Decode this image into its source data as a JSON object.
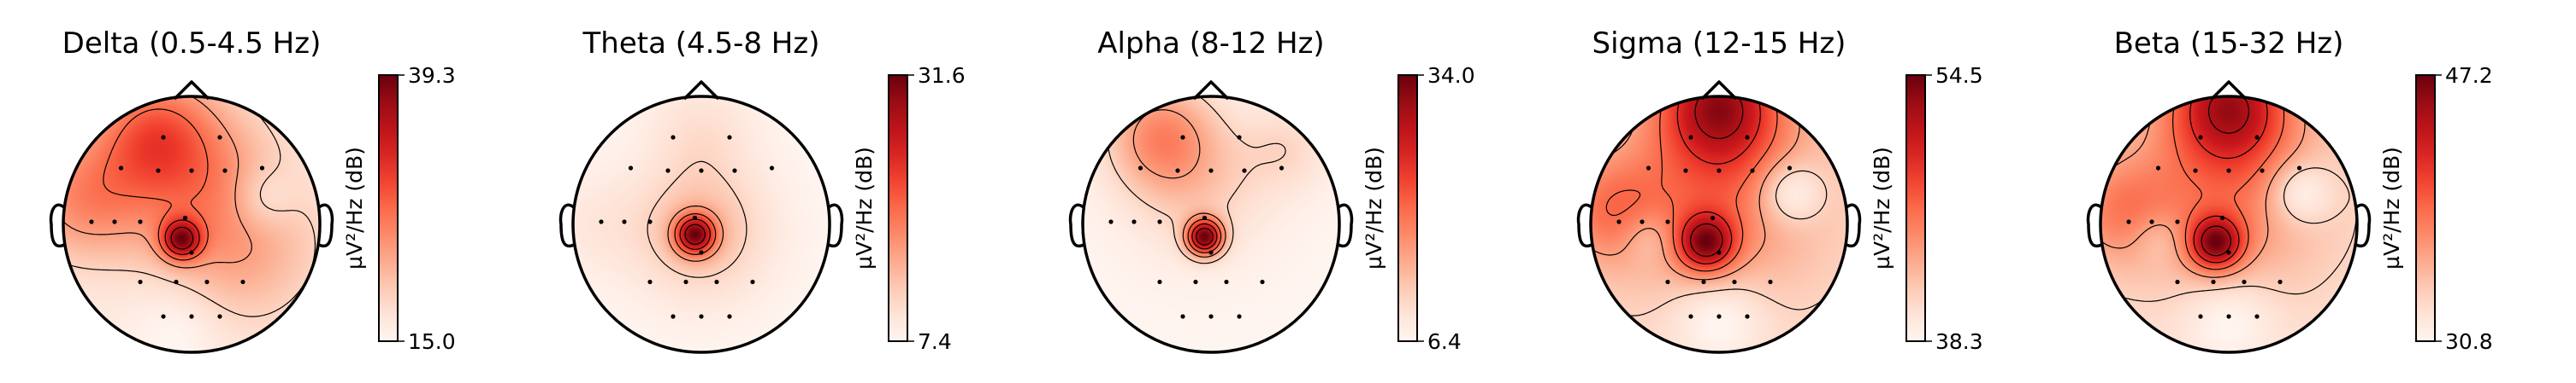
{
  "chart_data": [
    {
      "type": "heatmap",
      "title": "Delta (0.5-4.5 Hz)",
      "colorbar": {
        "label": "µV²/Hz (dB)",
        "min": 15.0,
        "max": 39.3,
        "ticks": [
          "39.3",
          "15.0"
        ]
      },
      "blobs": [
        {
          "cx": -0.08,
          "cy": -0.12,
          "level": 1.0,
          "sigma": 0.11
        },
        {
          "cx": -0.3,
          "cy": 0.72,
          "level": 0.55,
          "sigma": 0.32
        },
        {
          "cx": 0.0,
          "cy": 0.4,
          "level": 0.45,
          "sigma": 0.45
        },
        {
          "cx": -0.85,
          "cy": 0.2,
          "level": 0.5,
          "sigma": 0.35
        },
        {
          "cx": 0.4,
          "cy": -0.2,
          "level": 0.35,
          "sigma": 0.45
        },
        {
          "cx": 0.55,
          "cy": 0.2,
          "level": -0.25,
          "sigma": 0.18
        },
        {
          "cx": -0.1,
          "cy": -0.8,
          "level": -0.15,
          "sigma": 0.25
        }
      ]
    },
    {
      "type": "heatmap",
      "title": "Theta (4.5-8 Hz)",
      "colorbar": {
        "label": "µV²/Hz (dB)",
        "min": 7.4,
        "max": 31.6,
        "ticks": [
          "31.6",
          "7.4"
        ]
      },
      "blobs": [
        {
          "cx": -0.05,
          "cy": -0.08,
          "level": 1.0,
          "sigma": 0.11
        },
        {
          "cx": 0.0,
          "cy": -0.05,
          "level": 0.35,
          "sigma": 0.38
        },
        {
          "cx": 0.0,
          "cy": 0.75,
          "level": 0.15,
          "sigma": 0.3
        },
        {
          "cx": -0.85,
          "cy": 0.0,
          "level": 0.1,
          "sigma": 0.3
        }
      ]
    },
    {
      "type": "heatmap",
      "title": "Alpha (8-12 Hz)",
      "colorbar": {
        "label": "µV²/Hz (dB)",
        "min": 6.4,
        "max": 34.0,
        "ticks": [
          "34.0",
          "6.4"
        ]
      },
      "blobs": [
        {
          "cx": -0.05,
          "cy": -0.1,
          "level": 1.0,
          "sigma": 0.1
        },
        {
          "cx": -0.4,
          "cy": 0.7,
          "level": 0.4,
          "sigma": 0.3
        },
        {
          "cx": -0.1,
          "cy": 0.3,
          "level": 0.2,
          "sigma": 0.4
        },
        {
          "cx": 0.6,
          "cy": 0.6,
          "level": 0.15,
          "sigma": 0.25
        }
      ]
    },
    {
      "type": "heatmap",
      "title": "Sigma (12-15 Hz)",
      "colorbar": {
        "label": "µV²/Hz (dB)",
        "min": 38.3,
        "max": 54.5,
        "ticks": [
          "54.5",
          "38.3"
        ]
      },
      "blobs": [
        {
          "cx": -0.1,
          "cy": -0.15,
          "level": 1.0,
          "sigma": 0.16
        },
        {
          "cx": 0.0,
          "cy": 0.95,
          "level": 1.0,
          "sigma": 0.32
        },
        {
          "cx": 0.0,
          "cy": 0.3,
          "level": 0.55,
          "sigma": 0.55
        },
        {
          "cx": -0.85,
          "cy": 0.1,
          "level": 0.45,
          "sigma": 0.3
        },
        {
          "cx": 0.55,
          "cy": 0.25,
          "level": -0.45,
          "sigma": 0.18
        },
        {
          "cx": -0.55,
          "cy": -0.1,
          "level": -0.25,
          "sigma": 0.15
        },
        {
          "cx": 0.0,
          "cy": -0.75,
          "level": -0.3,
          "sigma": 0.25
        }
      ]
    },
    {
      "type": "heatmap",
      "title": "Beta (15-32 Hz)",
      "colorbar": {
        "label": "µV²/Hz (dB)",
        "min": 30.8,
        "max": 47.2,
        "ticks": [
          "47.2",
          "30.8"
        ]
      },
      "blobs": [
        {
          "cx": -0.1,
          "cy": -0.15,
          "level": 1.0,
          "sigma": 0.15
        },
        {
          "cx": 0.0,
          "cy": 0.95,
          "level": 0.95,
          "sigma": 0.32
        },
        {
          "cx": 0.0,
          "cy": 0.3,
          "level": 0.5,
          "sigma": 0.55
        },
        {
          "cx": -0.85,
          "cy": 0.1,
          "level": 0.4,
          "sigma": 0.3
        },
        {
          "cx": 0.55,
          "cy": 0.25,
          "level": -0.4,
          "sigma": 0.18
        },
        {
          "cx": -0.55,
          "cy": -0.1,
          "level": -0.2,
          "sigma": 0.15
        },
        {
          "cx": 0.0,
          "cy": -0.75,
          "level": -0.25,
          "sigma": 0.25
        }
      ]
    }
  ],
  "sensors": [
    [
      -0.22,
      0.68
    ],
    [
      0.22,
      0.68
    ],
    [
      -0.55,
      0.44
    ],
    [
      -0.26,
      0.42
    ],
    [
      0.0,
      0.42
    ],
    [
      0.26,
      0.42
    ],
    [
      0.55,
      0.44
    ],
    [
      -0.78,
      0.02
    ],
    [
      -0.6,
      0.02
    ],
    [
      -0.4,
      0.02
    ],
    [
      -0.05,
      0.05
    ],
    [
      0.0,
      -0.22
    ],
    [
      -0.4,
      -0.45
    ],
    [
      -0.12,
      -0.45
    ],
    [
      0.12,
      -0.45
    ],
    [
      0.4,
      -0.45
    ],
    [
      -0.22,
      -0.72
    ],
    [
      0.0,
      -0.72
    ],
    [
      0.22,
      -0.72
    ]
  ]
}
